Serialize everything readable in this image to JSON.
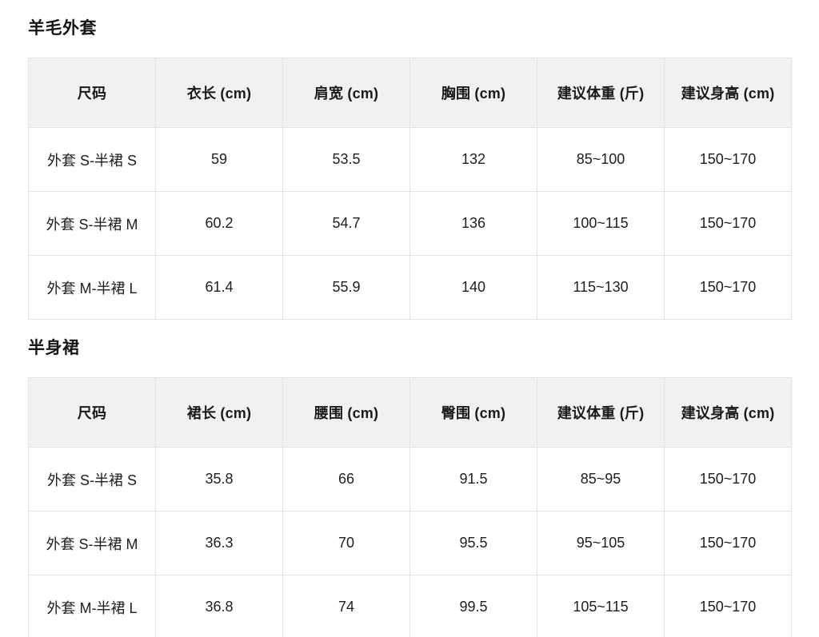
{
  "colors": {
    "page_background": "#ffffff",
    "header_row_background": "#f1f1f1",
    "grid_border": "#e3e3e4",
    "text": "#1c1c1e"
  },
  "sections": [
    {
      "title": "羊毛外套",
      "table": {
        "headers": [
          "尺码",
          "衣长 (cm)",
          "肩宽 (cm)",
          "胸围 (cm)",
          "建议体重 (斤)",
          "建议身高 (cm)"
        ],
        "rows": [
          [
            "外套 S-半裙 S",
            "59",
            "53.5",
            "132",
            "85~100",
            "150~170"
          ],
          [
            "外套 S-半裙 M",
            "60.2",
            "54.7",
            "136",
            "100~115",
            "150~170"
          ],
          [
            "外套 M-半裙 L",
            "61.4",
            "55.9",
            "140",
            "115~130",
            "150~170"
          ]
        ]
      }
    },
    {
      "title": "半身裙",
      "table": {
        "headers": [
          "尺码",
          "裙长 (cm)",
          "腰围 (cm)",
          "臀围 (cm)",
          "建议体重 (斤)",
          "建议身高 (cm)"
        ],
        "rows": [
          [
            "外套 S-半裙 S",
            "35.8",
            "66",
            "91.5",
            "85~95",
            "150~170"
          ],
          [
            "外套 S-半裙 M",
            "36.3",
            "70",
            "95.5",
            "95~105",
            "150~170"
          ],
          [
            "外套 M-半裙 L",
            "36.8",
            "74",
            "99.5",
            "105~115",
            "150~170"
          ]
        ]
      }
    }
  ]
}
